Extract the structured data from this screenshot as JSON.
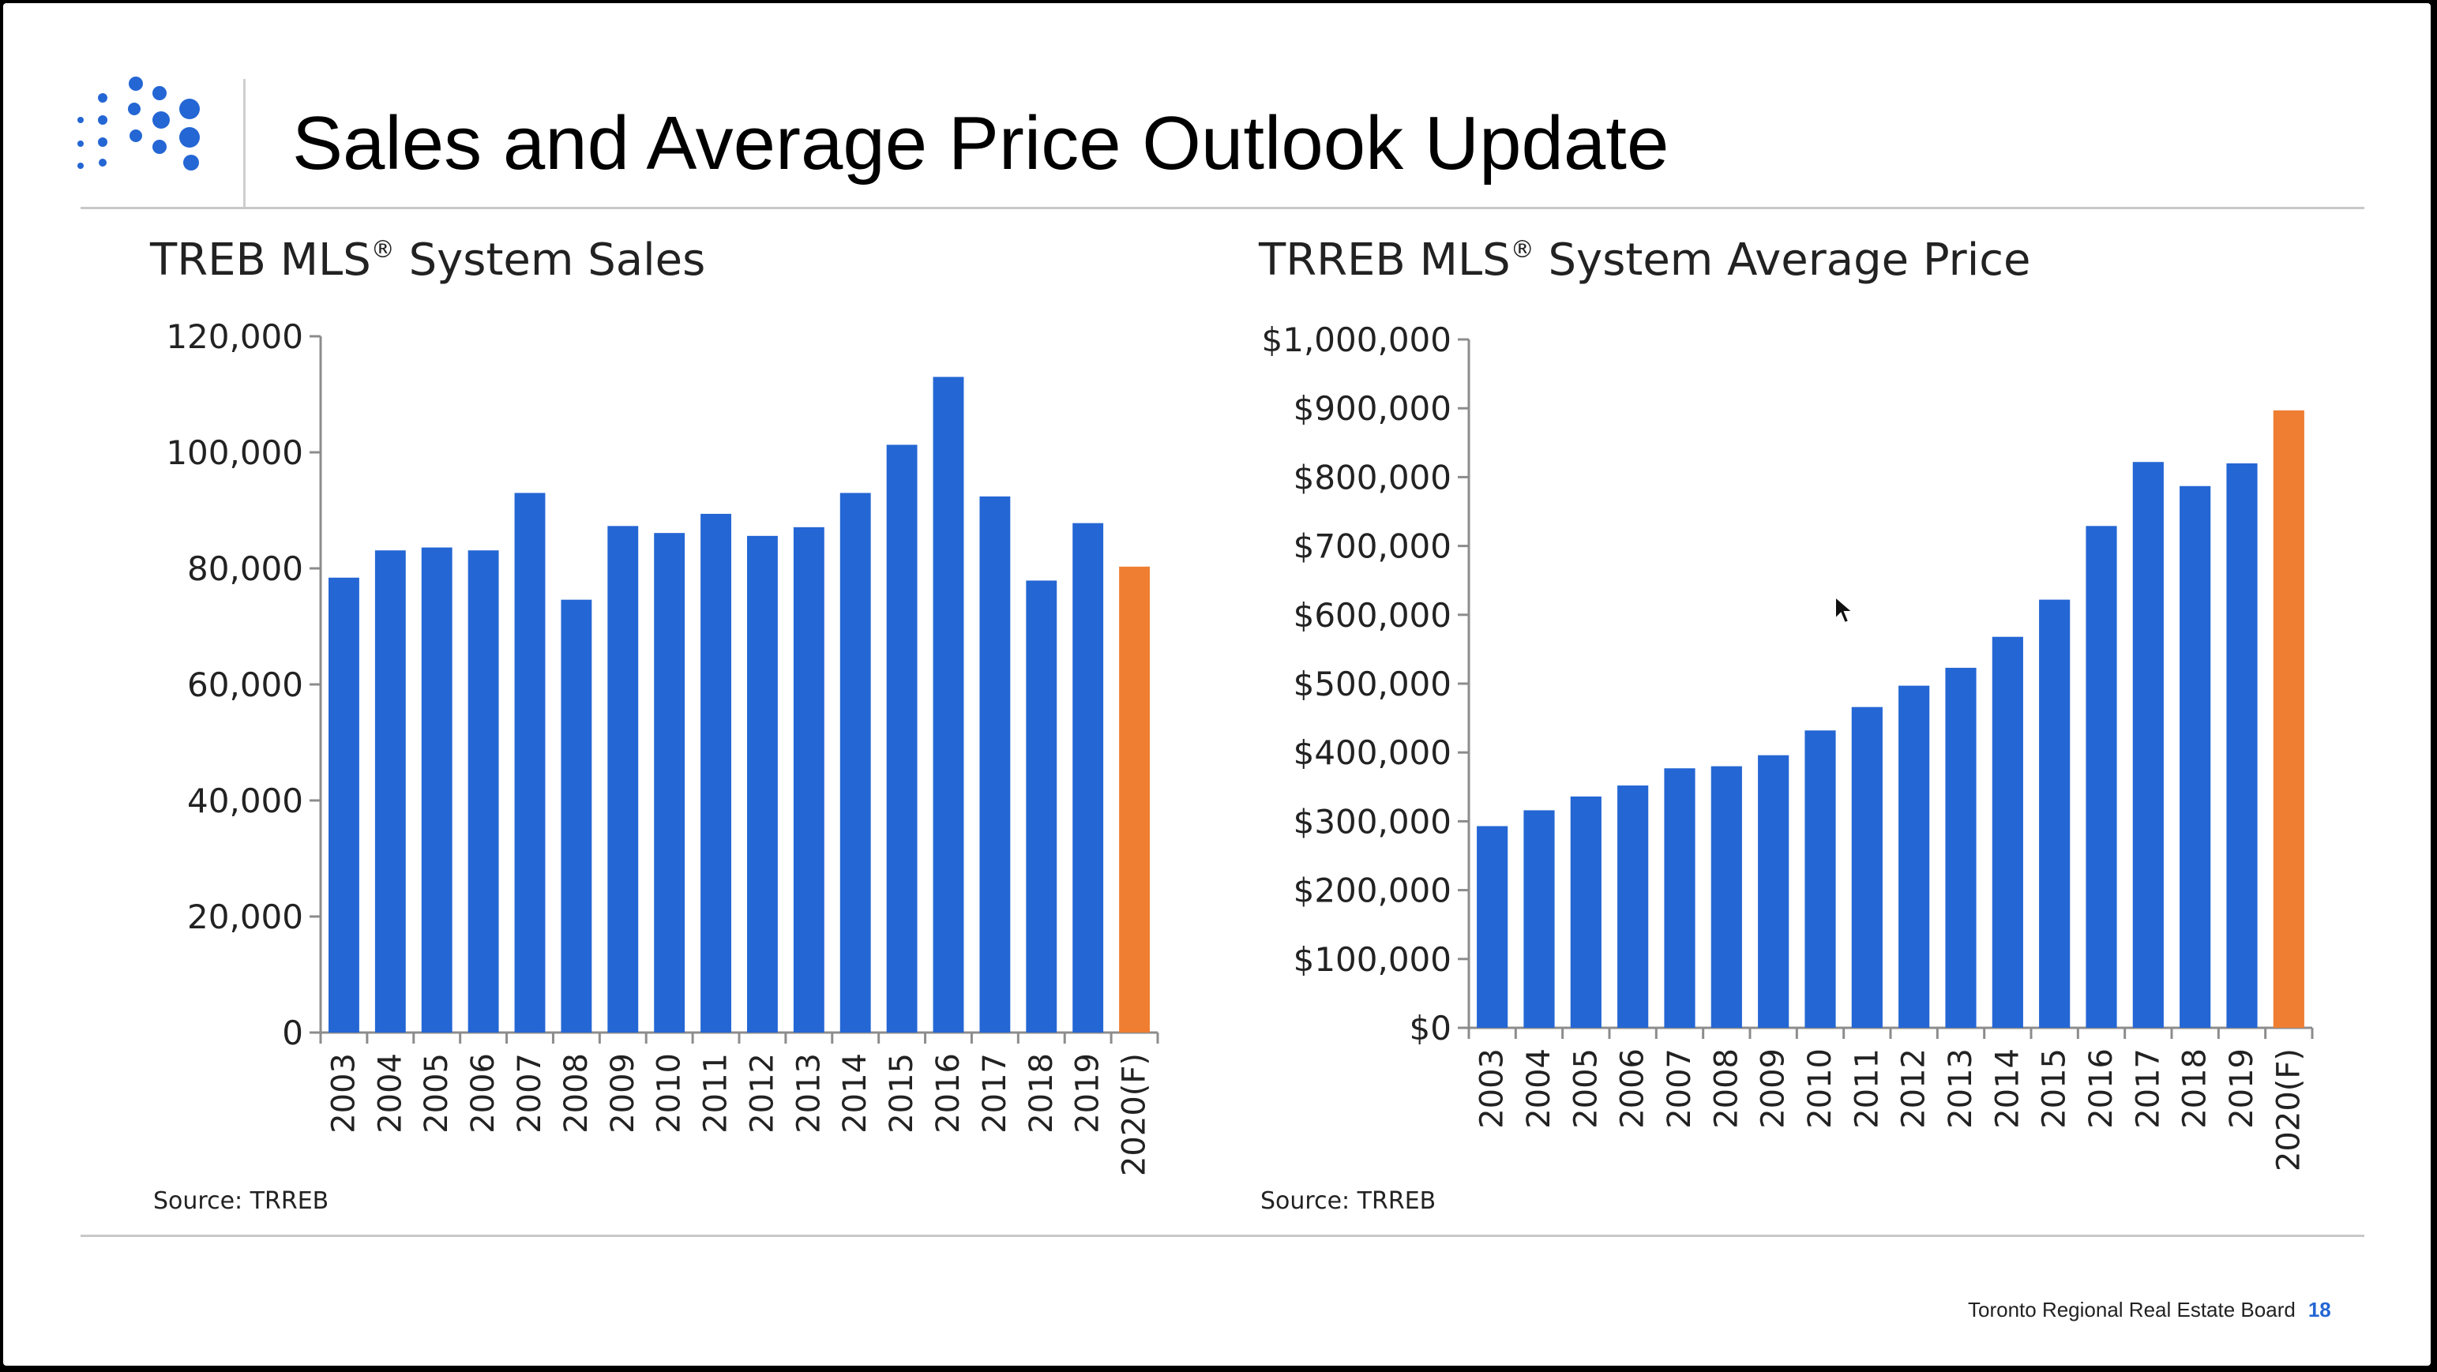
{
  "slide": {
    "title": "Sales and Average Price Outlook Update",
    "footer_org": "Toronto Regional Real Estate Board",
    "page_number": "18",
    "logo_icon": "dot-grid-logo-icon",
    "cursor_icon": "mouse-pointer-icon"
  },
  "colors": {
    "bar": "#2466d4",
    "forecast_bar": "#ef7e32",
    "axis": "#8c8c8c"
  },
  "chart_data": [
    {
      "type": "bar",
      "title_main": "TREB MLS",
      "title_sup": "®",
      "title_rest": " System Sales",
      "source": "Source:  TRREB",
      "categories": [
        "2003",
        "2004",
        "2005",
        "2006",
        "2007",
        "2008",
        "2009",
        "2010",
        "2011",
        "2012",
        "2013",
        "2014",
        "2015",
        "2016",
        "2017",
        "2018",
        "2019",
        "2020(F)"
      ],
      "values": [
        78400,
        83100,
        83600,
        83100,
        93000,
        74600,
        87300,
        86100,
        89400,
        85600,
        87100,
        93000,
        101300,
        113000,
        92400,
        77900,
        87800,
        80300
      ],
      "forecast_index": 17,
      "ylim": [
        0,
        120000
      ],
      "yticks": [
        0,
        20000,
        40000,
        60000,
        80000,
        100000,
        120000
      ],
      "ytick_labels": [
        "0",
        "20,000",
        "40,000",
        "60,000",
        "80,000",
        "100,000",
        "120,000"
      ],
      "grid": false,
      "legend": "none"
    },
    {
      "type": "bar",
      "title_main": "TRREB MLS",
      "title_sup": "®",
      "title_rest": " System Average Price",
      "source": "Source:  TRREB",
      "categories": [
        "2003",
        "2004",
        "2005",
        "2006",
        "2007",
        "2008",
        "2009",
        "2010",
        "2011",
        "2012",
        "2013",
        "2014",
        "2015",
        "2016",
        "2017",
        "2018",
        "2019",
        "2020(F)"
      ],
      "values": [
        293000,
        316000,
        336000,
        352000,
        377000,
        380000,
        396000,
        432000,
        466000,
        497000,
        523000,
        568000,
        622000,
        729000,
        822000,
        787000,
        820000,
        897000
      ],
      "forecast_index": 17,
      "ylim": [
        0,
        1000000
      ],
      "yticks": [
        0,
        100000,
        200000,
        300000,
        400000,
        500000,
        600000,
        700000,
        800000,
        900000,
        1000000
      ],
      "ytick_labels": [
        "$0",
        "$100,000",
        "$200,000",
        "$300,000",
        "$400,000",
        "$500,000",
        "$600,000",
        "$700,000",
        "$800,000",
        "$900,000",
        "$1,000,000"
      ],
      "grid": false,
      "legend": "none"
    }
  ]
}
